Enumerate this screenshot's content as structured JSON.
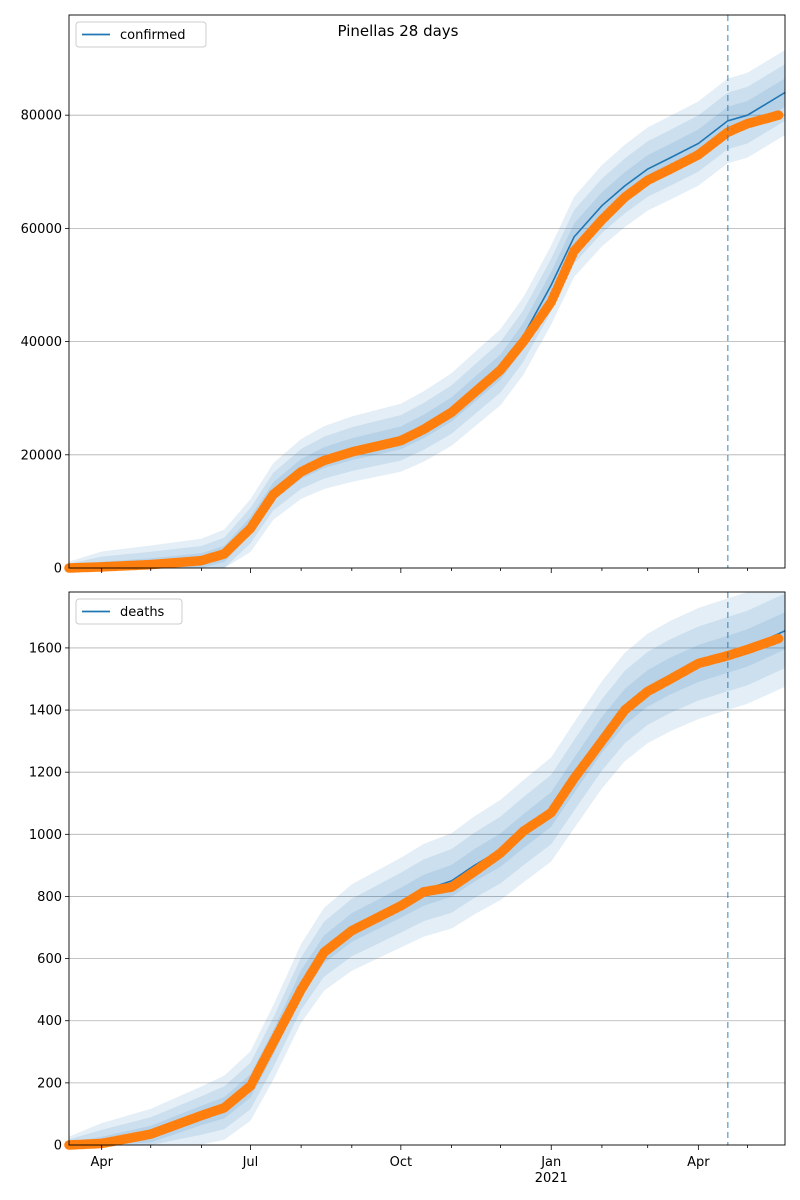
{
  "figure": {
    "title": "Pinellas 28 days"
  },
  "x_axis": {
    "start": "2020-03-12",
    "end": "2021-05-24",
    "tick_labels": [
      {
        "date": "2020-04-01",
        "label": "Apr"
      },
      {
        "date": "2020-07-01",
        "label": "Jul"
      },
      {
        "date": "2020-10-01",
        "label": "Oct"
      },
      {
        "date": "2021-01-01",
        "label": "Jan"
      },
      {
        "date": "2021-04-01",
        "label": "Apr"
      }
    ],
    "year_label": {
      "date": "2021-01-01",
      "label": "2021"
    },
    "minor_tick_dates": [
      "2020-05-01",
      "2020-06-01",
      "2020-08-01",
      "2020-09-01",
      "2020-11-01",
      "2020-12-01",
      "2021-02-01",
      "2021-03-01",
      "2021-05-01"
    ]
  },
  "forecast_start": "2021-04-19",
  "colors": {
    "model": "#1f77b4",
    "observed": "#ff7f0e",
    "band": "#1f77b4",
    "grid": "#b0b0b0"
  },
  "chart_data": [
    {
      "type": "line",
      "legend": "confirmed",
      "legend_position": "upper left",
      "grid": "horizontal",
      "ylim": [
        0,
        97700
      ],
      "yticks": [
        0,
        20000,
        40000,
        60000,
        80000
      ],
      "model": {
        "x": [
          "2020-03-12",
          "2020-04-01",
          "2020-05-01",
          "2020-06-01",
          "2020-06-15",
          "2020-07-01",
          "2020-07-15",
          "2020-08-01",
          "2020-08-15",
          "2020-09-01",
          "2020-10-01",
          "2020-10-15",
          "2020-11-01",
          "2020-11-15",
          "2020-12-01",
          "2020-12-15",
          "2021-01-01",
          "2021-01-15",
          "2021-02-01",
          "2021-02-15",
          "2021-03-01",
          "2021-03-15",
          "2021-04-01",
          "2021-04-19",
          "2021-05-01",
          "2021-05-24"
        ],
        "y": [
          0,
          200,
          600,
          1300,
          2500,
          7500,
          13500,
          17500,
          19500,
          21000,
          23000,
          25000,
          28000,
          31500,
          35500,
          41000,
          50000,
          58500,
          64000,
          67500,
          70500,
          72500,
          75000,
          79000,
          80000,
          84000
        ]
      },
      "band_widths": [
        2500,
        5000,
        7500
      ],
      "observed": {
        "x": [
          "2020-03-12",
          "2020-04-01",
          "2020-05-01",
          "2020-06-01",
          "2020-06-15",
          "2020-07-01",
          "2020-07-15",
          "2020-08-01",
          "2020-08-15",
          "2020-09-01",
          "2020-10-01",
          "2020-10-15",
          "2020-11-01",
          "2020-11-15",
          "2020-12-01",
          "2020-12-15",
          "2021-01-01",
          "2021-01-15",
          "2021-02-01",
          "2021-02-15",
          "2021-03-01",
          "2021-03-15",
          "2021-04-01",
          "2021-04-19",
          "2021-05-01",
          "2021-05-20"
        ],
        "y": [
          0,
          200,
          600,
          1300,
          2500,
          7000,
          13000,
          17000,
          19000,
          20500,
          22500,
          24500,
          27500,
          31000,
          35000,
          40000,
          47000,
          56000,
          61500,
          65500,
          68500,
          70500,
          73000,
          77000,
          78500,
          80000
        ]
      }
    },
    {
      "type": "line",
      "legend": "deaths",
      "legend_position": "upper left",
      "grid": "horizontal",
      "ylim": [
        0,
        1780
      ],
      "yticks": [
        0,
        200,
        400,
        600,
        800,
        1000,
        1200,
        1400,
        1600
      ],
      "model": {
        "x": [
          "2020-03-12",
          "2020-04-01",
          "2020-05-01",
          "2020-06-01",
          "2020-06-15",
          "2020-07-01",
          "2020-07-15",
          "2020-08-01",
          "2020-08-15",
          "2020-09-01",
          "2020-10-01",
          "2020-10-15",
          "2020-11-01",
          "2020-11-15",
          "2020-12-01",
          "2020-12-15",
          "2021-01-01",
          "2021-01-15",
          "2021-02-01",
          "2021-02-15",
          "2021-03-01",
          "2021-03-15",
          "2021-04-01",
          "2021-04-19",
          "2021-05-01",
          "2021-05-24"
        ],
        "y": [
          0,
          5,
          35,
          95,
          120,
          190,
          330,
          520,
          630,
          700,
          780,
          820,
          850,
          900,
          950,
          1010,
          1080,
          1190,
          1320,
          1410,
          1470,
          1510,
          1550,
          1580,
          1600,
          1655
        ]
      },
      "band_widths": [
        60,
        120,
        180
      ],
      "observed": {
        "x": [
          "2020-03-12",
          "2020-04-01",
          "2020-05-01",
          "2020-06-01",
          "2020-06-15",
          "2020-07-01",
          "2020-07-15",
          "2020-08-01",
          "2020-08-15",
          "2020-09-01",
          "2020-10-01",
          "2020-10-15",
          "2020-11-01",
          "2020-11-15",
          "2020-12-01",
          "2020-12-15",
          "2021-01-01",
          "2021-01-15",
          "2021-02-01",
          "2021-02-15",
          "2021-03-01",
          "2021-03-15",
          "2021-04-01",
          "2021-04-19",
          "2021-05-01",
          "2021-05-20"
        ],
        "y": [
          0,
          5,
          35,
          95,
          120,
          190,
          330,
          500,
          620,
          690,
          770,
          815,
          830,
          880,
          940,
          1010,
          1070,
          1180,
          1300,
          1400,
          1460,
          1500,
          1550,
          1575,
          1595,
          1630
        ]
      }
    }
  ]
}
